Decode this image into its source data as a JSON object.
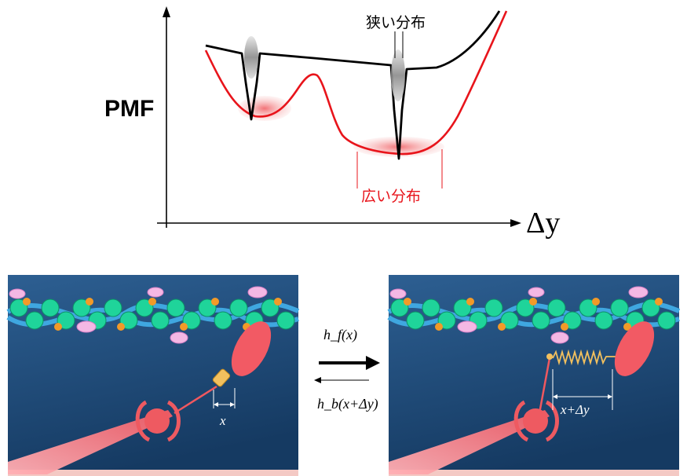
{
  "pmf_plot": {
    "ylabel": "PMF",
    "xlabel": "Δy",
    "narrow_label": "狭い分布",
    "wide_label": "広い分布",
    "colors": {
      "narrow_curve": "#000000",
      "wide_curve": "#e8141b",
      "wide_fill": "#f39a9a",
      "axis": "#000000"
    }
  },
  "panels": {
    "left": {
      "var_label": "x"
    },
    "right": {
      "var_label": "x+Δy"
    }
  },
  "transitions": {
    "forward_label": "h_f(x)",
    "backward_label": "h_b(x+Δy)"
  }
}
